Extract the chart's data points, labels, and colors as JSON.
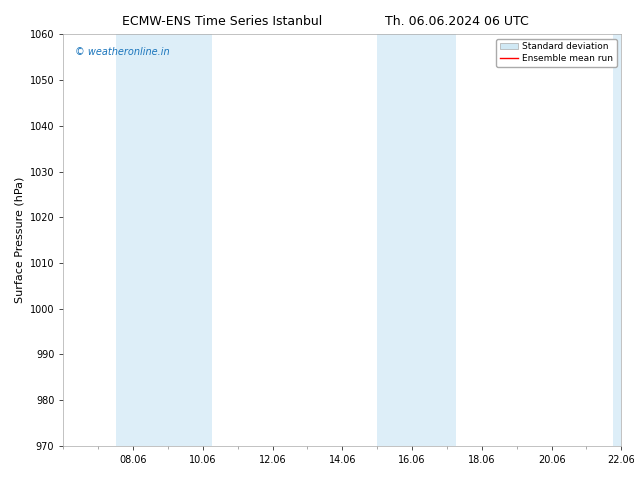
{
  "title_left": "ECMW-ENS Time Series Istanbul",
  "title_right": "Th. 06.06.2024 06 UTC",
  "ylabel": "Surface Pressure (hPa)",
  "ylim": [
    970,
    1060
  ],
  "yticks": [
    970,
    980,
    990,
    1000,
    1010,
    1020,
    1030,
    1040,
    1050,
    1060
  ],
  "xlim": [
    0,
    16
  ],
  "xtick_positions": [
    2,
    4,
    6,
    8,
    10,
    12,
    14,
    16
  ],
  "xtick_labels": [
    "08.06",
    "10.06",
    "12.06",
    "14.06",
    "16.06",
    "18.06",
    "20.06",
    "22.06"
  ],
  "shaded_bands": [
    {
      "x_start": 1.5,
      "x_end": 3.0,
      "color": "#ddeef8"
    },
    {
      "x_start": 3.0,
      "x_end": 4.25,
      "color": "#ddeef8"
    },
    {
      "x_start": 9.0,
      "x_end": 10.0,
      "color": "#ddeef8"
    },
    {
      "x_start": 10.0,
      "x_end": 11.25,
      "color": "#ddeef8"
    },
    {
      "x_start": 15.75,
      "x_end": 16.0,
      "color": "#ddeef8"
    }
  ],
  "watermark_text": "© weatheronline.in",
  "watermark_color": "#1a75bc",
  "legend_std_color": "#d0e8f4",
  "legend_mean_color": "#ff0000",
  "bg_color": "#ffffff",
  "title_fontsize": 9,
  "label_fontsize": 8,
  "tick_fontsize": 7,
  "watermark_fontsize": 7
}
